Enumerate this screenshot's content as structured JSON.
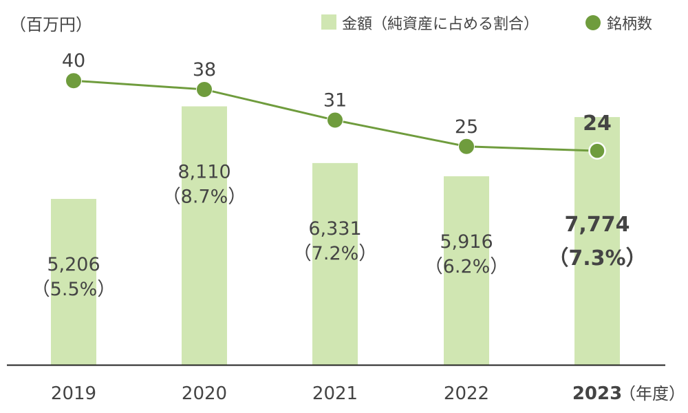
{
  "chart_data": {
    "type": "bar",
    "categories": [
      "2019",
      "2020",
      "2021",
      "2022",
      "2023"
    ],
    "highlight_index": 4,
    "y_unit": "（百万円）",
    "x_unit": "（年度）",
    "ylim": [
      0,
      10000
    ],
    "series": [
      {
        "name": "金額（純資産に占める割合）",
        "type": "bar",
        "color": "#d0e6b2",
        "values": [
          5206,
          8110,
          6331,
          5916,
          7774
        ],
        "value_labels": [
          "5,206",
          "8,110",
          "6,331",
          "5,916",
          "7,774"
        ],
        "pct_labels": [
          "（5.5%）",
          "（8.7%）",
          "（7.2%）",
          "（6.2%）",
          "（7.3%）"
        ]
      },
      {
        "name": "銘柄数",
        "type": "line",
        "color": "#6f9c3d",
        "values": [
          40,
          38,
          31,
          25,
          24
        ],
        "value_labels": [
          "40",
          "38",
          "31",
          "25",
          "24"
        ]
      }
    ],
    "grid": false,
    "legend_position": "top-right"
  }
}
